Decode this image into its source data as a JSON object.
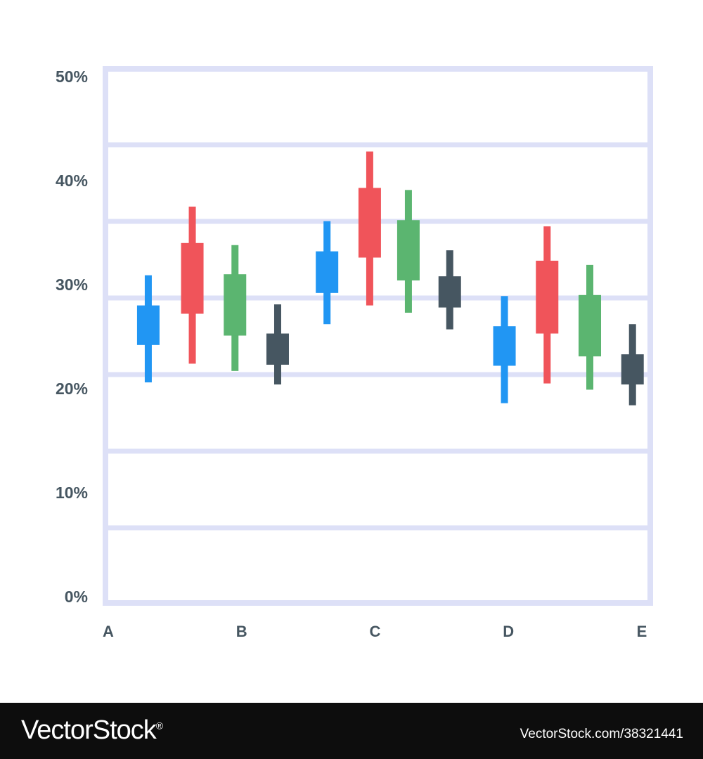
{
  "chart_data": {
    "type": "candlestick",
    "title": "",
    "xlabel": "",
    "ylabel": "",
    "y_ticks": [
      "50%",
      "40%",
      "30%",
      "20%",
      "10%",
      "0%"
    ],
    "x_ticks": [
      "A",
      "B",
      "C",
      "D",
      "E"
    ],
    "ylim": [
      0,
      50
    ],
    "grid": true,
    "candles": [
      {
        "x": 0.3,
        "low": 20.6,
        "open": 24.2,
        "close": 28.0,
        "high": 30.9,
        "color": "#2196f3"
      },
      {
        "x": 0.63,
        "low": 22.4,
        "open": 27.2,
        "close": 34.0,
        "high": 37.5,
        "color": "#f0545a"
      },
      {
        "x": 0.95,
        "low": 21.7,
        "open": 25.1,
        "close": 31.0,
        "high": 33.8,
        "color": "#5bb570"
      },
      {
        "x": 1.27,
        "low": 20.4,
        "open": 22.3,
        "close": 25.3,
        "high": 28.1,
        "color": "#465661"
      },
      {
        "x": 1.64,
        "low": 26.2,
        "open": 29.2,
        "close": 33.2,
        "high": 36.1,
        "color": "#2196f3"
      },
      {
        "x": 1.96,
        "low": 28.0,
        "open": 32.6,
        "close": 39.3,
        "high": 42.8,
        "color": "#f0545a"
      },
      {
        "x": 2.25,
        "low": 27.3,
        "open": 30.4,
        "close": 36.2,
        "high": 39.1,
        "color": "#5bb570"
      },
      {
        "x": 2.56,
        "low": 25.7,
        "open": 27.8,
        "close": 30.8,
        "high": 33.3,
        "color": "#465661"
      },
      {
        "x": 2.97,
        "low": 18.6,
        "open": 22.2,
        "close": 26.0,
        "high": 28.9,
        "color": "#2196f3"
      },
      {
        "x": 3.29,
        "low": 20.5,
        "open": 25.3,
        "close": 32.3,
        "high": 35.6,
        "color": "#f0545a"
      },
      {
        "x": 3.61,
        "low": 19.9,
        "open": 23.1,
        "close": 29.0,
        "high": 31.9,
        "color": "#5bb570"
      },
      {
        "x": 3.93,
        "low": 18.4,
        "open": 20.4,
        "close": 23.3,
        "high": 26.2,
        "color": "#465661"
      }
    ]
  },
  "footer": {
    "logo_text": "VectorStock",
    "logo_mark": "®",
    "image_id": "VectorStock.com/38321441"
  }
}
